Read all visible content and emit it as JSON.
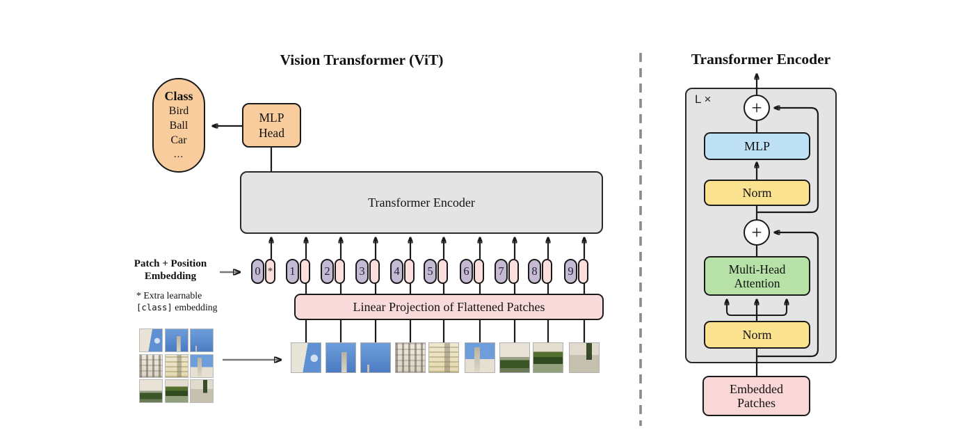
{
  "figure": {
    "left_title": "Vision Transformer (ViT)",
    "right_title": "Transformer Encoder"
  },
  "class_head": {
    "title": "Class",
    "classes": [
      "Bird",
      "Ball",
      "Car",
      "..."
    ]
  },
  "mlp_head": {
    "lines": [
      "MLP",
      "Head"
    ]
  },
  "encoder": {
    "label": "Transformer Encoder"
  },
  "tokens": {
    "position_labels": [
      "0",
      "1",
      "2",
      "3",
      "4",
      "5",
      "6",
      "7",
      "8",
      "9"
    ],
    "class_token_mark": "*"
  },
  "linear_projection": {
    "label": "Linear Projection of Flattened Patches"
  },
  "patch_position": {
    "lines": [
      "Patch + Position",
      "Embedding"
    ]
  },
  "footnote": {
    "line1": "* Extra learnable",
    "code": "[class]",
    "rest": " embedding"
  },
  "patches": {
    "types": [
      "building-sky",
      "tower-sky",
      "sky",
      "facade",
      "facade-tower",
      "tower-courtyard",
      "building-hedge",
      "facade-trees",
      "walkway-tree"
    ]
  },
  "encoder_detail": {
    "repeat_label": "L ×",
    "plus": "+",
    "mlp": "MLP",
    "norm_top": "Norm",
    "mha_lines": [
      "Multi-Head",
      "Attention"
    ],
    "norm_bottom": "Norm",
    "embedded_lines": [
      "Embedded",
      "Patches"
    ]
  },
  "colors": {
    "orange": "#F8CC9C",
    "gray_box": "#E4E4E4",
    "pink": "#FADBDB",
    "pink_pill": "#FBDFDC",
    "purple_pill": "#C5BAD3",
    "blue": "#BEE1F5",
    "yellow": "#FBE28E",
    "green": "#B7E2A7",
    "embedded_pink": "#F9D7D6",
    "line": "#1a1a1a",
    "gray_arrow": "#777777",
    "divider": "#8a8a8a"
  }
}
